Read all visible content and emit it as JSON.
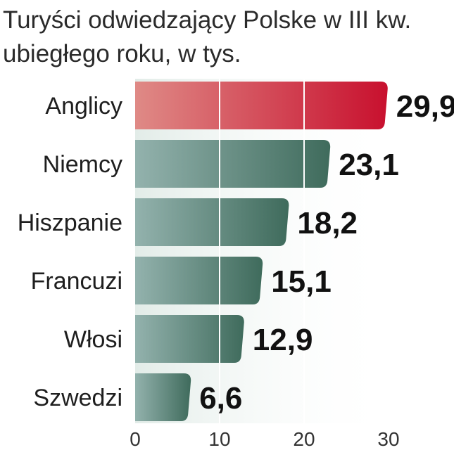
{
  "chart_data": {
    "type": "bar",
    "orientation": "horizontal",
    "title_lines": [
      "Turyści odwiedzający Polske w III kw.",
      "ubiegłego roku, w tys."
    ],
    "categories": [
      "Anglicy",
      "Niemcy",
      "Hiszpanie",
      "Francuzi",
      "Włosi",
      "Szwedzi"
    ],
    "values": [
      29.9,
      23.1,
      18.2,
      15.1,
      12.9,
      6.6
    ],
    "value_labels": [
      "29,9",
      "23,1",
      "18,2",
      "15,1",
      "12,9",
      "6,6"
    ],
    "xlim": [
      0,
      30
    ],
    "x_ticks": [
      0,
      10,
      20,
      30
    ],
    "x_tick_labels": [
      "0",
      "10",
      "20",
      "30"
    ],
    "grid": true,
    "highlight_index": 0,
    "colors": {
      "highlight_start": "#df8a86",
      "highlight_end": "#c8102e",
      "bar_start": "#93b2ad",
      "bar_end": "#3f6b5c",
      "plot_background": "#e2ece8",
      "gridline": "#ffffff"
    }
  }
}
